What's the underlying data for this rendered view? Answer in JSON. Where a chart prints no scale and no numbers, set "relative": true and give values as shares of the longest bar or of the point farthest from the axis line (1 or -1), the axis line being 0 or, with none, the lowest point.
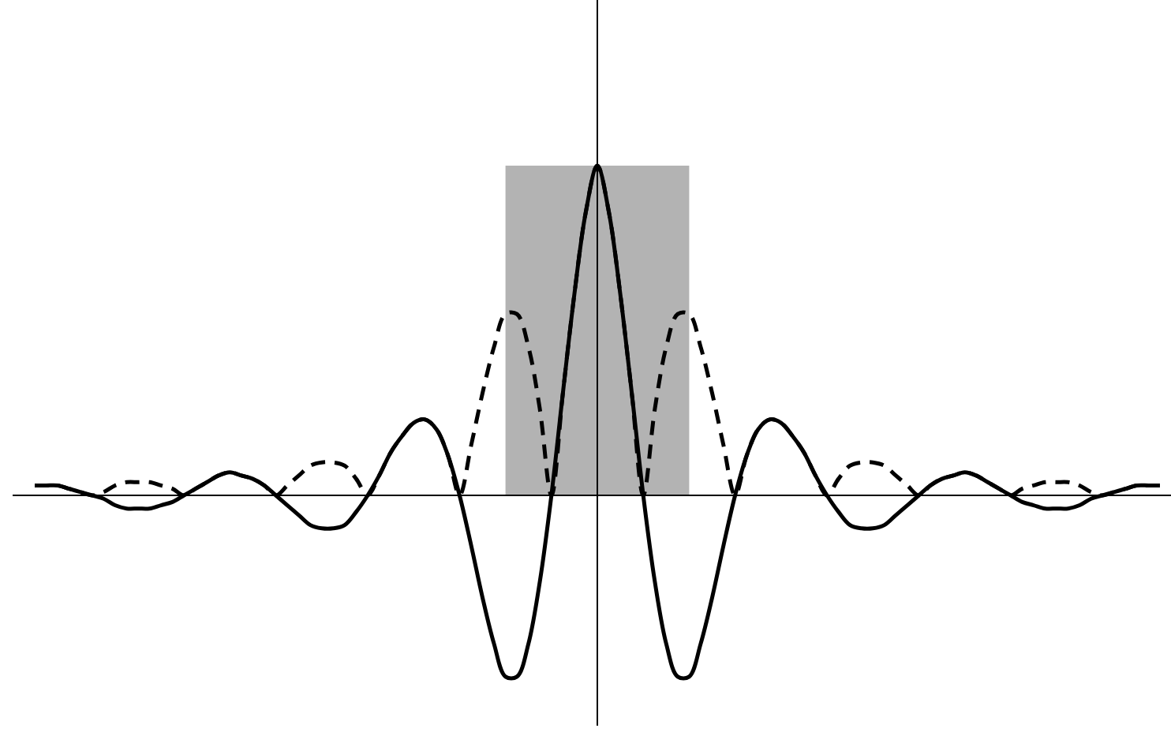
{
  "chart_data": {
    "type": "line",
    "relative": true,
    "categories": [
      null,
      null,
      null,
      null,
      null,
      null,
      null,
      null,
      null,
      null,
      null,
      null,
      null,
      null,
      null,
      null,
      null,
      null,
      null,
      null,
      null,
      null,
      null,
      null,
      null,
      null,
      null,
      null,
      null,
      null,
      null,
      null,
      null,
      null,
      null,
      null,
      null,
      null,
      null,
      null,
      null,
      null,
      null,
      null,
      null,
      null,
      null,
      null,
      null,
      null,
      null,
      null,
      null,
      null,
      null,
      null,
      null,
      null,
      null,
      null,
      null,
      null,
      null,
      null,
      null,
      null,
      null,
      null,
      null,
      null,
      null,
      null,
      null,
      null,
      null,
      null,
      null,
      null,
      null,
      null,
      null,
      null,
      null,
      null,
      null,
      null,
      null,
      null,
      null,
      null,
      null,
      null,
      null,
      null,
      null,
      null,
      null,
      null,
      null
    ],
    "series": [
      {
        "type": "area",
        "color": "#b3b3b3",
        "values": [
          null,
          null,
          null,
          null,
          null,
          null,
          null,
          null,
          null,
          null,
          null,
          null,
          null,
          null,
          null,
          null,
          null,
          null,
          null,
          null,
          null,
          null,
          null,
          null,
          null,
          null,
          null,
          null,
          null,
          null,
          null,
          null,
          null,
          null,
          null,
          null,
          null,
          null,
          null,
          null,
          null,
          1,
          1,
          1,
          1,
          1,
          1,
          1,
          1,
          1,
          1,
          1,
          1,
          1,
          1,
          1,
          1,
          1,
          null,
          null,
          null,
          null,
          null,
          null,
          null,
          null,
          null,
          null,
          null,
          null,
          null,
          null,
          null,
          null,
          null,
          null,
          null,
          null,
          null,
          null,
          null,
          null,
          null,
          null,
          null,
          null,
          null,
          null,
          null,
          null,
          null,
          null,
          null,
          null,
          null,
          null,
          null,
          null,
          null
        ]
      },
      {
        "type": "line",
        "color": "#000000",
        "line_style": "dashed",
        "values": [
          0.03,
          0.03,
          0.03,
          0.02,
          0.01,
          0,
          0.01,
          0.03,
          0.04,
          0.04,
          0.04,
          0.03,
          0.02,
          0,
          0.02,
          0.04,
          0.06,
          0.07,
          0.06,
          0.05,
          0.03,
          0,
          0.03,
          0.06,
          0.09,
          0.1,
          0.1,
          0.09,
          0.05,
          0,
          0.06,
          0.13,
          0.18,
          0.22,
          0.23,
          0.2,
          0.12,
          0,
          0.15,
          0.31,
          0.45,
          0.55,
          0.55,
          0.45,
          0.26,
          0,
          0.31,
          0.61,
          0.86,
          1,
          0.86,
          0.61,
          0.31,
          0,
          0.26,
          0.45,
          0.55,
          0.55,
          0.45,
          0.31,
          0.15,
          0,
          0.12,
          0.2,
          0.23,
          0.22,
          0.18,
          0.13,
          0.06,
          0,
          0.05,
          0.09,
          0.1,
          0.1,
          0.09,
          0.06,
          0.03,
          0,
          0.03,
          0.05,
          0.06,
          0.07,
          0.06,
          0.04,
          0.02,
          0,
          0.02,
          0.03,
          0.04,
          0.04,
          0.04,
          0.03,
          0.01,
          0,
          0.01,
          0.02,
          0.03,
          0.03,
          0.03
        ]
      },
      {
        "color": "#000000",
        "line_style": "solid",
        "values": [
          0.03,
          0.03,
          0.03,
          0.02,
          0.01,
          0,
          -0.01,
          -0.03,
          -0.04,
          -0.04,
          -0.04,
          -0.03,
          -0.02,
          0,
          0.02,
          0.04,
          0.06,
          0.07,
          0.06,
          0.05,
          0.03,
          0,
          -0.03,
          -0.06,
          -0.09,
          -0.1,
          -0.1,
          -0.09,
          -0.05,
          0,
          0.06,
          0.13,
          0.18,
          0.22,
          0.23,
          0.2,
          0.12,
          0,
          -0.15,
          -0.31,
          -0.45,
          -0.55,
          -0.55,
          -0.45,
          -0.26,
          0,
          0.31,
          0.61,
          0.86,
          1,
          0.86,
          0.61,
          0.31,
          0,
          -0.26,
          -0.45,
          -0.55,
          -0.55,
          -0.45,
          -0.31,
          -0.15,
          0,
          0.12,
          0.2,
          0.23,
          0.22,
          0.18,
          0.13,
          0.06,
          0,
          -0.05,
          -0.09,
          -0.1,
          -0.1,
          -0.09,
          -0.06,
          -0.03,
          0,
          0.03,
          0.05,
          0.06,
          0.07,
          0.06,
          0.04,
          0.02,
          0,
          -0.02,
          -0.03,
          -0.04,
          -0.04,
          -0.04,
          -0.03,
          -0.01,
          0,
          0.01,
          0.02,
          0.03,
          0.03,
          0.03
        ]
      }
    ]
  }
}
